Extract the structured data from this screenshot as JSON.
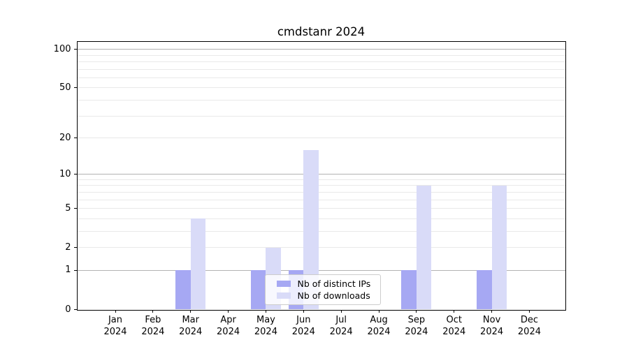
{
  "chart_data": {
    "type": "bar",
    "title": "cmdstanr 2024",
    "categories": [
      "Jan",
      "Feb",
      "Mar",
      "Apr",
      "May",
      "Jun",
      "Jul",
      "Aug",
      "Sep",
      "Oct",
      "Nov",
      "Dec"
    ],
    "x_tick_year": "2024",
    "series": [
      {
        "name": "Nb of distinct IPs",
        "color": "#a6a8f3",
        "values": [
          0,
          0,
          1,
          0,
          1,
          1,
          0,
          0,
          1,
          0,
          1,
          0
        ]
      },
      {
        "name": "Nb of downloads",
        "color": "#d9dbf8",
        "values": [
          0,
          0,
          4,
          0,
          2,
          16,
          0,
          0,
          8,
          0,
          8,
          0
        ]
      }
    ],
    "y_ticks": [
      0,
      1,
      2,
      5,
      10,
      20,
      50,
      100
    ],
    "y_scale": "log1p",
    "ylim": [
      0,
      116
    ],
    "xlabel": "",
    "ylabel": "",
    "grid": true,
    "legend_position": "lower center inside",
    "colors": {
      "major_grid": "#b2b2b2",
      "minor_grid": "#e9e9e9",
      "spine": "#000000",
      "background": "#ffffff"
    }
  }
}
